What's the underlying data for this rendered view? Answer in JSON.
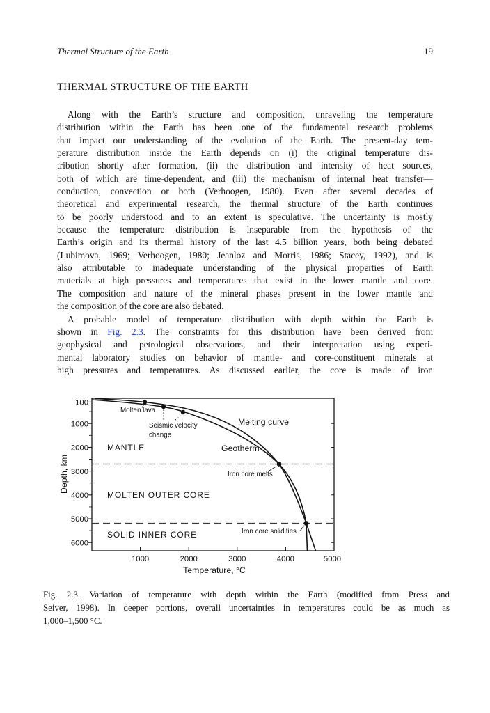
{
  "page": {
    "running_header": "Thermal Structure of the Earth",
    "page_number": "19",
    "heading": "THERMAL STRUCTURE OF THE EARTH",
    "link_color": "#2742c8",
    "figure_link_text": "Fig. 2.3",
    "paragraph1_lines": [
      "Along with the Earth’s structure and composition, unraveling the temperature",
      "distribution within the Earth has been one of the fundamental research problems",
      "that impact our understanding of the evolution of the Earth. The present-day tem-",
      "perature distribution inside the Earth depends on (i) the original temperature dis-",
      "tribution shortly after formation, (ii) the distribution and intensity of heat sources,",
      "both of which are time-dependent, and (iii) the mechanism of internal heat transfer—",
      "conduction, convection or both (Verhoogen, 1980). Even after several decades of",
      "theoretical and experimental research, the thermal structure of the Earth continues",
      "to be poorly understood and to an extent is speculative. The uncertainty is mostly",
      "because the temperature distribution is inseparable from the hypothesis of the",
      "Earth’s origin and its thermal history of the last 4.5 billion years, both being debated",
      "(Lubimova, 1969; Verhoogen, 1980; Jeanloz and Morris, 1986; Stacey, 1992), and is",
      "also attributable to inadequate understanding of the physical properties of Earth",
      "materials at high pressures and temperatures that exist in the lower mantle and core.",
      "The composition and nature of the mineral phases present in the lower mantle and",
      "the composition of the core are also debated."
    ],
    "paragraph2_lines": [
      "A probable model of temperature distribution with depth within the Earth is",
      "shown in Fig. 2.3. The constraints for this distribution have been derived from",
      "geophysical and petrological observations, and their interpretation using experi-",
      "mental laboratory studies on behavior of mantle- and core-constituent minerals at",
      "high pressures and temperatures. As discussed earlier, the core is made of iron"
    ],
    "caption_lines": [
      "Fig. 2.3. Variation of temperature with depth within the Earth (modified from Press and",
      "Seiver, 1998). In deeper portions, overall uncertainties in temperatures could be as much as",
      "1,000–1,500 °C."
    ]
  },
  "chart_data": {
    "type": "line",
    "title": "",
    "xlabel": "Temperature, °C",
    "ylabel": "Depth, km",
    "xlim": [
      0,
      5000
    ],
    "depth_range_km": [
      0,
      6350
    ],
    "y_axis_direction": "depth increases downward",
    "grid": false,
    "xticks": [
      1000,
      2000,
      3000,
      4000,
      5000
    ],
    "yticks": [
      100,
      1000,
      2000,
      3000,
      4000,
      5000,
      6000
    ],
    "series": [
      {
        "name": "Geotherm",
        "points_temp_c_depth_km": [
          [
            0,
            0
          ],
          [
            1300,
            250
          ],
          [
            2000,
            600
          ],
          [
            3200,
            1800
          ],
          [
            3850,
            2700
          ],
          [
            4300,
            4300
          ],
          [
            4425,
            5200
          ],
          [
            4450,
            6350
          ]
        ]
      },
      {
        "name": "Melting curve",
        "points_temp_c_depth_km": [
          [
            0,
            30
          ],
          [
            1100,
            100
          ],
          [
            1900,
            500
          ],
          [
            2900,
            1200
          ],
          [
            3500,
            2000
          ],
          [
            3850,
            2700
          ],
          [
            4150,
            4300
          ],
          [
            4425,
            5200
          ],
          [
            4600,
            6350
          ]
        ]
      }
    ],
    "marked_points": [
      {
        "label": "Molten lava",
        "temp_c": 1100,
        "depth_km": 100
      },
      {
        "label": "Seismic velocity change",
        "temp_c": 1480,
        "depth_km": 300
      },
      {
        "label": "Seismic velocity change",
        "temp_c": 1880,
        "depth_km": 530
      },
      {
        "label": "Iron core melts",
        "temp_c": 3850,
        "depth_km": 2700
      },
      {
        "label": "Iron core solidifies",
        "temp_c": 4425,
        "depth_km": 5200
      }
    ],
    "boundary_lines_depth_km": [
      2700,
      5200
    ],
    "labels": {
      "mantle": "MANTLE",
      "outer_core": "MOLTEN OUTER CORE",
      "inner_core": "SOLID INNER CORE",
      "melting_curve": "Melting curve",
      "geotherm": "Geotherm",
      "molten_lava": "Molten lava",
      "seismic_line1": "Seismic velocity",
      "seismic_line2": "change",
      "iron_core_melts": "Iron core melts",
      "iron_core_solidifies": "Iron core solidifies"
    },
    "tick_strings": {
      "y0": "100",
      "y1": "1000",
      "y2": "2000",
      "y3": "3000",
      "y4": "4000",
      "y5": "5000",
      "y6": "6000",
      "x0": "1000",
      "x1": "2000",
      "x2": "3000",
      "x3": "4000",
      "x4": "5000"
    }
  }
}
